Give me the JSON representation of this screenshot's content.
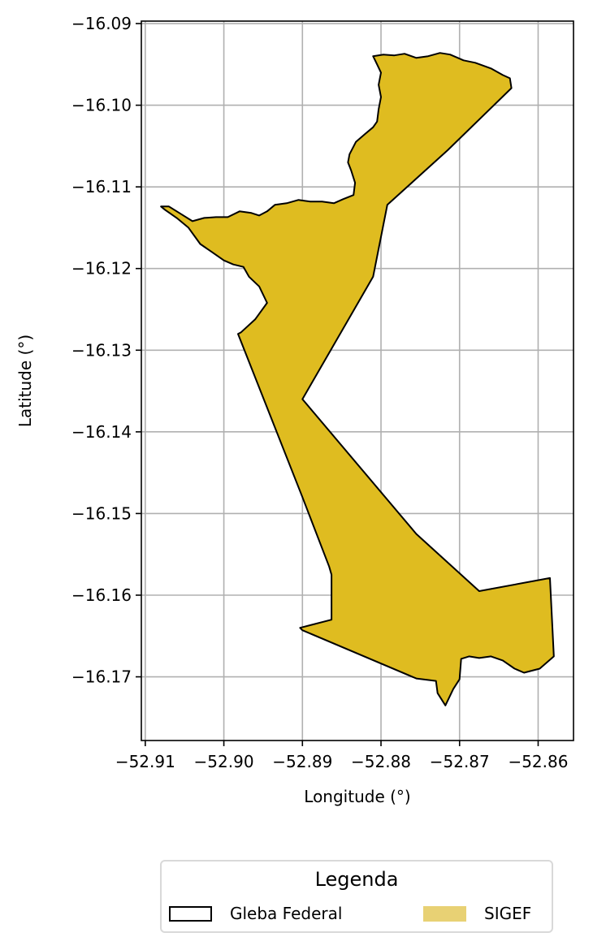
{
  "chart_data": {
    "type": "map",
    "xlabel": "Longitude (°)",
    "ylabel": "Latitude (°)",
    "xlim": [
      -52.9105,
      -52.8555
    ],
    "ylim": [
      -16.1778,
      -16.0897
    ],
    "grid": true,
    "xticks": [
      -52.91,
      -52.9,
      -52.89,
      -52.88,
      -52.87,
      -52.86
    ],
    "xtick_labels": [
      "−52.91",
      "−52.90",
      "−52.89",
      "−52.88",
      "−52.87",
      "−52.86"
    ],
    "yticks": [
      -16.09,
      -16.1,
      -16.11,
      -16.12,
      -16.13,
      -16.14,
      -16.15,
      -16.16,
      -16.17
    ],
    "ytick_labels": [
      "−16.09",
      "−16.10",
      "−16.11",
      "−16.12",
      "−16.13",
      "−16.14",
      "−16.15",
      "−16.16",
      "−16.17"
    ],
    "layers": [
      {
        "name": "SIGEF",
        "fill": "#dfbc20",
        "stroke": "#000000",
        "polygon": [
          [
            -52.881,
            -16.094
          ],
          [
            -52.8797,
            -16.0938
          ],
          [
            -52.8783,
            -16.0939
          ],
          [
            -52.877,
            -16.0937
          ],
          [
            -52.8755,
            -16.0942
          ],
          [
            -52.874,
            -16.094
          ],
          [
            -52.8725,
            -16.0936
          ],
          [
            -52.8712,
            -16.0938
          ],
          [
            -52.8695,
            -16.0945
          ],
          [
            -52.868,
            -16.0948
          ],
          [
            -52.866,
            -16.0955
          ],
          [
            -52.8645,
            -16.0963
          ],
          [
            -52.8636,
            -16.0967
          ],
          [
            -52.8634,
            -16.0979
          ],
          [
            -52.8715,
            -16.1055
          ],
          [
            -52.8792,
            -16.1122
          ],
          [
            -52.881,
            -16.121
          ],
          [
            -52.89,
            -16.136
          ],
          [
            -52.8755,
            -16.1525
          ],
          [
            -52.8675,
            -16.1595
          ],
          [
            -52.8585,
            -16.1579
          ],
          [
            -52.858,
            -16.1675
          ],
          [
            -52.8598,
            -16.169
          ],
          [
            -52.8618,
            -16.1695
          ],
          [
            -52.863,
            -16.169
          ],
          [
            -52.8645,
            -16.168
          ],
          [
            -52.866,
            -16.1675
          ],
          [
            -52.8675,
            -16.1677
          ],
          [
            -52.8688,
            -16.1675
          ],
          [
            -52.8698,
            -16.1678
          ],
          [
            -52.87,
            -16.1703
          ],
          [
            -52.8708,
            -16.1715
          ],
          [
            -52.8718,
            -16.1735
          ],
          [
            -52.8728,
            -16.172
          ],
          [
            -52.873,
            -16.1705
          ],
          [
            -52.8755,
            -16.1702
          ],
          [
            -52.89,
            -16.1643
          ],
          [
            -52.8903,
            -16.164
          ],
          [
            -52.8863,
            -16.163
          ],
          [
            -52.8863,
            -16.1575
          ],
          [
            -52.8866,
            -16.1565
          ],
          [
            -52.89,
            -16.148
          ],
          [
            -52.8982,
            -16.128
          ],
          [
            -52.8978,
            -16.1278
          ],
          [
            -52.896,
            -16.1262
          ],
          [
            -52.8945,
            -16.1242
          ],
          [
            -52.8955,
            -16.1222
          ],
          [
            -52.8968,
            -16.121
          ],
          [
            -52.8975,
            -16.1198
          ],
          [
            -52.8988,
            -16.1195
          ],
          [
            -52.9,
            -16.119
          ],
          [
            -52.9015,
            -16.118
          ],
          [
            -52.903,
            -16.117
          ],
          [
            -52.9045,
            -16.115
          ],
          [
            -52.906,
            -16.1138
          ],
          [
            -52.9075,
            -16.1128
          ],
          [
            -52.908,
            -16.1124
          ],
          [
            -52.907,
            -16.1124
          ],
          [
            -52.9055,
            -16.1133
          ],
          [
            -52.904,
            -16.1142
          ],
          [
            -52.9025,
            -16.1138
          ],
          [
            -52.901,
            -16.1137
          ],
          [
            -52.8995,
            -16.1137
          ],
          [
            -52.898,
            -16.113
          ],
          [
            -52.8965,
            -16.1132
          ],
          [
            -52.8955,
            -16.1135
          ],
          [
            -52.8945,
            -16.113
          ],
          [
            -52.8935,
            -16.1122
          ],
          [
            -52.892,
            -16.112
          ],
          [
            -52.8905,
            -16.1116
          ],
          [
            -52.889,
            -16.1118
          ],
          [
            -52.8875,
            -16.1118
          ],
          [
            -52.886,
            -16.112
          ],
          [
            -52.8848,
            -16.1115
          ],
          [
            -52.8835,
            -16.111
          ],
          [
            -52.8833,
            -16.1095
          ],
          [
            -52.8838,
            -16.108
          ],
          [
            -52.8842,
            -16.107
          ],
          [
            -52.884,
            -16.106
          ],
          [
            -52.8832,
            -16.1045
          ],
          [
            -52.882,
            -16.1035
          ],
          [
            -52.881,
            -16.1027
          ],
          [
            -52.8805,
            -16.102
          ],
          [
            -52.8803,
            -16.1005
          ],
          [
            -52.88,
            -16.099
          ],
          [
            -52.8803,
            -16.0975
          ],
          [
            -52.88,
            -16.096
          ],
          [
            -52.8805,
            -16.095
          ]
        ]
      }
    ]
  },
  "legend": {
    "title": "Legenda",
    "items": [
      {
        "label": "Gleba Federal",
        "fill": "#ffffff",
        "stroke": "#000000"
      },
      {
        "label": "SIGEF",
        "fill": "#e8d174",
        "stroke": "#e8d174"
      }
    ]
  }
}
